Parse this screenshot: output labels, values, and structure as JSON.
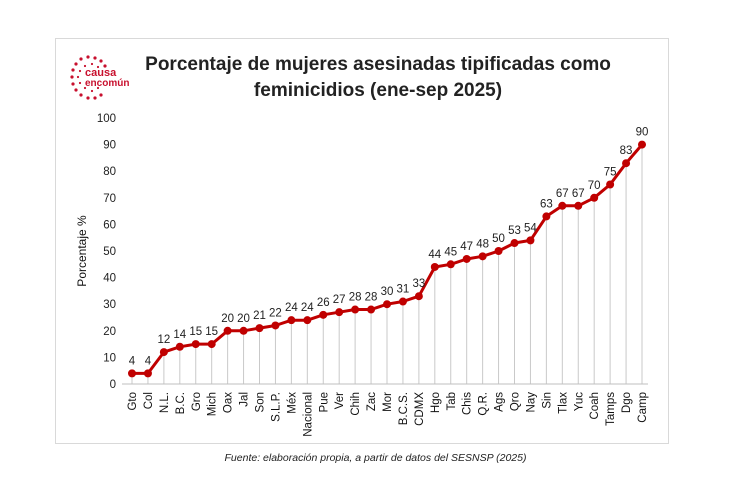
{
  "logo": {
    "line1": "causa",
    "line2": "encomún"
  },
  "chart_data": {
    "type": "line",
    "title_line1": "Porcentaje de mujeres asesinadas tipificadas como",
    "title_line2": "feminicidios (ene-sep 2025)",
    "ylabel": "Porcentaje %",
    "xlabel": "",
    "ylim": [
      0,
      100
    ],
    "yticks": [
      0,
      10,
      20,
      30,
      40,
      50,
      60,
      70,
      80,
      90,
      100
    ],
    "grid": "vertical drop lines",
    "legend": "none",
    "categories": [
      "Gto",
      "Col",
      "N.L.",
      "B.C.",
      "Gro",
      "Mich",
      "Oax",
      "Jal",
      "Son",
      "S.L.P.",
      "Méx",
      "Nacional",
      "Pue",
      "Ver",
      "Chih",
      "Zac",
      "Mor",
      "B.C.S.",
      "CDMX",
      "Hgo",
      "Tab",
      "Chis",
      "Q.R.",
      "Ags",
      "Qro",
      "Nay",
      "Sin",
      "Tlax",
      "Yuc",
      "Coah",
      "Tamps",
      "Dgo",
      "Camp"
    ],
    "series": [
      {
        "name": "Porcentaje",
        "color": "#c00000",
        "values": [
          4,
          4,
          12,
          14,
          15,
          15,
          20,
          20,
          21,
          22,
          24,
          24,
          26,
          27,
          28,
          28,
          30,
          31,
          33,
          44,
          45,
          47,
          48,
          50,
          53,
          54,
          63,
          67,
          67,
          70,
          75,
          83,
          90
        ]
      }
    ]
  },
  "caption": "Fuente: elaboración propia, a partir de datos del SESNSP (2025)"
}
